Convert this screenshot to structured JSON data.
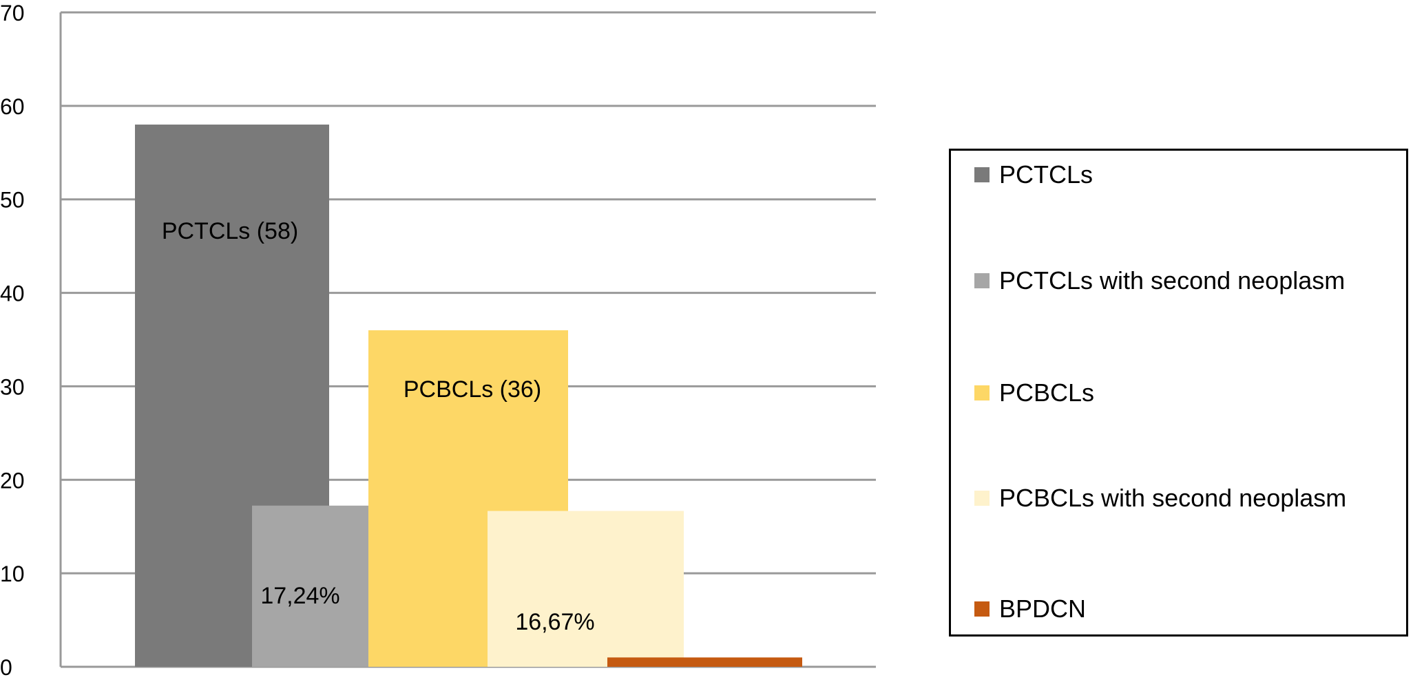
{
  "chart_data": {
    "type": "bar",
    "title": "",
    "xlabel": "",
    "ylabel": "",
    "ylim": [
      0,
      70
    ],
    "yticks": [
      "0",
      "10",
      "20",
      "30",
      "40",
      "50",
      "60",
      "70"
    ],
    "grid": true,
    "legend_position": "right",
    "series": [
      {
        "name": "PCTCLs",
        "value": 58,
        "color": "#7a7a7a",
        "label": "PCTCLs (58)"
      },
      {
        "name": "PCTCLs with second neoplasm",
        "value": 17.24,
        "color": "#a6a6a6",
        "label": "17,24%"
      },
      {
        "name": "PCBCLs",
        "value": 36,
        "color": "#fdd766",
        "label": "PCBCLs (36)"
      },
      {
        "name": "PCBCLs with second neoplasm",
        "value": 16.67,
        "color": "#fef2cc",
        "label": "16,67%"
      },
      {
        "name": "BPDCN",
        "value": 1,
        "color": "#c55a11",
        "label": ""
      }
    ]
  }
}
